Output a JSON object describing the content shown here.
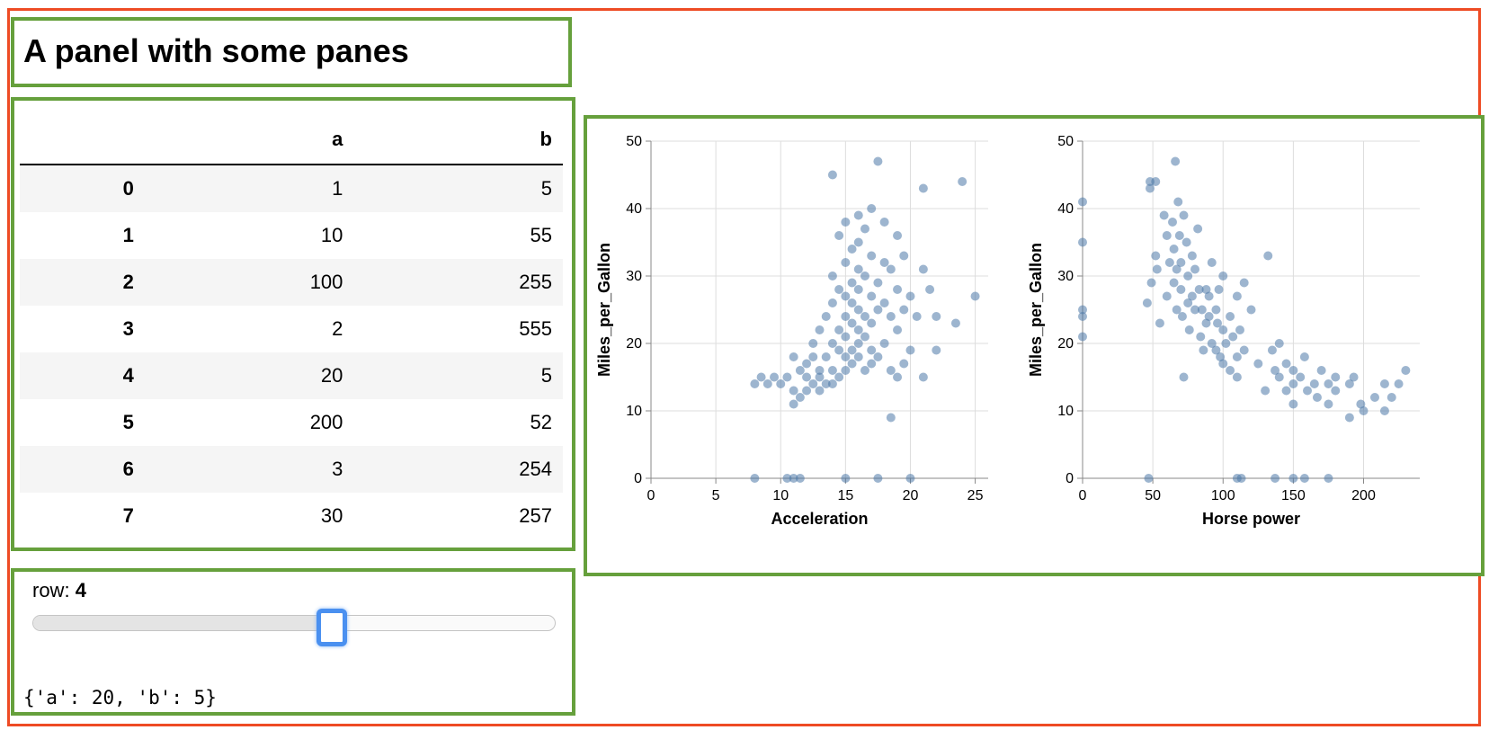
{
  "header": {
    "title": "A panel with some panes"
  },
  "table": {
    "columns": [
      "",
      "a",
      "b"
    ],
    "rows": [
      {
        "index": "0",
        "a": "1",
        "b": "5"
      },
      {
        "index": "1",
        "a": "10",
        "b": "55"
      },
      {
        "index": "2",
        "a": "100",
        "b": "255"
      },
      {
        "index": "3",
        "a": "2",
        "b": "555"
      },
      {
        "index": "4",
        "a": "20",
        "b": "5"
      },
      {
        "index": "5",
        "a": "200",
        "b": "52"
      },
      {
        "index": "6",
        "a": "3",
        "b": "254"
      },
      {
        "index": "7",
        "a": "30",
        "b": "257"
      }
    ]
  },
  "slider": {
    "label": "row:",
    "value": "4",
    "min": 0,
    "max": 7,
    "value_num": 4
  },
  "output": {
    "text": "{'a': 20, 'b': 5}"
  },
  "colors": {
    "outer_border": "#ee4b24",
    "pane_border": "#66a03c",
    "point": "#4c78a8",
    "slider_handle": "#4a90f0"
  },
  "chart_data": [
    {
      "type": "scatter",
      "xlabel": "Acceleration",
      "ylabel": "Miles_per_Gallon",
      "xlim": [
        0,
        26
      ],
      "ylim": [
        0,
        50
      ],
      "xticks": [
        0,
        5,
        10,
        15,
        20,
        25
      ],
      "yticks": [
        0,
        10,
        20,
        30,
        40,
        50
      ],
      "grid": true,
      "point_color": "#4c78a8",
      "points": [
        [
          8.0,
          14
        ],
        [
          8.5,
          15
        ],
        [
          9.0,
          14
        ],
        [
          9.5,
          15
        ],
        [
          10.0,
          14
        ],
        [
          10.5,
          15
        ],
        [
          11.0,
          11
        ],
        [
          11.0,
          13
        ],
        [
          11.0,
          18
        ],
        [
          11.5,
          12
        ],
        [
          11.5,
          16
        ],
        [
          12.0,
          13
        ],
        [
          12.0,
          15
        ],
        [
          12.0,
          17
        ],
        [
          12.5,
          14
        ],
        [
          12.5,
          18
        ],
        [
          12.5,
          20
        ],
        [
          13.0,
          13
        ],
        [
          13.0,
          15
        ],
        [
          13.0,
          16
        ],
        [
          13.0,
          22
        ],
        [
          13.5,
          14
        ],
        [
          13.5,
          18
        ],
        [
          13.5,
          24
        ],
        [
          14.0,
          14
        ],
        [
          14.0,
          16
        ],
        [
          14.0,
          20
        ],
        [
          14.0,
          26
        ],
        [
          14.0,
          30
        ],
        [
          14.0,
          45
        ],
        [
          14.5,
          15
        ],
        [
          14.5,
          19
        ],
        [
          14.5,
          22
        ],
        [
          14.5,
          28
        ],
        [
          14.5,
          36
        ],
        [
          15.0,
          16
        ],
        [
          15.0,
          18
        ],
        [
          15.0,
          21
        ],
        [
          15.0,
          24
        ],
        [
          15.0,
          27
        ],
        [
          15.0,
          32
        ],
        [
          15.0,
          38
        ],
        [
          15.5,
          17
        ],
        [
          15.5,
          19
        ],
        [
          15.5,
          23
        ],
        [
          15.5,
          26
        ],
        [
          15.5,
          29
        ],
        [
          15.5,
          34
        ],
        [
          16.0,
          18
        ],
        [
          16.0,
          20
        ],
        [
          16.0,
          22
        ],
        [
          16.0,
          25
        ],
        [
          16.0,
          28
        ],
        [
          16.0,
          31
        ],
        [
          16.0,
          35
        ],
        [
          16.0,
          39
        ],
        [
          16.5,
          16
        ],
        [
          16.5,
          21
        ],
        [
          16.5,
          24
        ],
        [
          16.5,
          30
        ],
        [
          16.5,
          37
        ],
        [
          17.0,
          17
        ],
        [
          17.0,
          19
        ],
        [
          17.0,
          23
        ],
        [
          17.0,
          27
        ],
        [
          17.0,
          33
        ],
        [
          17.0,
          40
        ],
        [
          17.5,
          18
        ],
        [
          17.5,
          25
        ],
        [
          17.5,
          29
        ],
        [
          17.5,
          47
        ],
        [
          18.0,
          20
        ],
        [
          18.0,
          26
        ],
        [
          18.0,
          32
        ],
        [
          18.0,
          38
        ],
        [
          18.5,
          9
        ],
        [
          18.5,
          16
        ],
        [
          18.5,
          24
        ],
        [
          18.5,
          31
        ],
        [
          19.0,
          15
        ],
        [
          19.0,
          22
        ],
        [
          19.0,
          28
        ],
        [
          19.0,
          36
        ],
        [
          19.5,
          17
        ],
        [
          19.5,
          25
        ],
        [
          19.5,
          33
        ],
        [
          20.0,
          19
        ],
        [
          20.0,
          27
        ],
        [
          20.5,
          24
        ],
        [
          21.0,
          15
        ],
        [
          21.0,
          31
        ],
        [
          21.0,
          43
        ],
        [
          21.5,
          28
        ],
        [
          22.0,
          19
        ],
        [
          22.0,
          24
        ],
        [
          23.5,
          23
        ],
        [
          24.0,
          44
        ],
        [
          25.0,
          27
        ],
        [
          8.0,
          0
        ],
        [
          10.5,
          0
        ],
        [
          11.0,
          0
        ],
        [
          11.5,
          0
        ],
        [
          15.0,
          0
        ],
        [
          17.5,
          0
        ],
        [
          20.0,
          0
        ]
      ]
    },
    {
      "type": "scatter",
      "xlabel": "Horse power",
      "ylabel": "Miles_per_Gallon",
      "xlim": [
        0,
        240
      ],
      "ylim": [
        0,
        50
      ],
      "xticks": [
        0,
        50,
        100,
        150,
        200
      ],
      "yticks": [
        0,
        10,
        20,
        30,
        40,
        50
      ],
      "grid": true,
      "point_color": "#4c78a8",
      "points": [
        [
          0,
          41
        ],
        [
          0,
          35
        ],
        [
          0,
          25
        ],
        [
          0,
          24
        ],
        [
          0,
          21
        ],
        [
          46,
          26
        ],
        [
          48,
          44
        ],
        [
          48,
          43
        ],
        [
          49,
          29
        ],
        [
          52,
          33
        ],
        [
          52,
          44
        ],
        [
          53,
          31
        ],
        [
          55,
          23
        ],
        [
          58,
          39
        ],
        [
          60,
          36
        ],
        [
          60,
          27
        ],
        [
          62,
          32
        ],
        [
          64,
          38
        ],
        [
          65,
          34
        ],
        [
          65,
          29
        ],
        [
          66,
          47
        ],
        [
          67,
          31
        ],
        [
          67,
          25
        ],
        [
          68,
          41
        ],
        [
          69,
          36
        ],
        [
          70,
          32
        ],
        [
          70,
          28
        ],
        [
          71,
          24
        ],
        [
          72,
          39
        ],
        [
          72,
          15
        ],
        [
          74,
          35
        ],
        [
          75,
          30
        ],
        [
          75,
          26
        ],
        [
          76,
          22
        ],
        [
          78,
          33
        ],
        [
          78,
          27
        ],
        [
          80,
          31
        ],
        [
          80,
          25
        ],
        [
          82,
          37
        ],
        [
          83,
          28
        ],
        [
          84,
          21
        ],
        [
          85,
          25
        ],
        [
          86,
          19
        ],
        [
          88,
          28
        ],
        [
          88,
          23
        ],
        [
          90,
          27
        ],
        [
          90,
          24
        ],
        [
          92,
          20
        ],
        [
          92,
          32
        ],
        [
          95,
          25
        ],
        [
          95,
          19
        ],
        [
          96,
          23
        ],
        [
          97,
          28
        ],
        [
          98,
          18
        ],
        [
          100,
          22
        ],
        [
          100,
          17
        ],
        [
          100,
          30
        ],
        [
          102,
          20
        ],
        [
          105,
          24
        ],
        [
          105,
          16
        ],
        [
          107,
          21
        ],
        [
          110,
          18
        ],
        [
          110,
          27
        ],
        [
          110,
          15
        ],
        [
          112,
          22
        ],
        [
          115,
          19
        ],
        [
          115,
          29
        ],
        [
          120,
          25
        ],
        [
          125,
          17
        ],
        [
          130,
          13
        ],
        [
          132,
          33
        ],
        [
          135,
          19
        ],
        [
          137,
          16
        ],
        [
          140,
          15
        ],
        [
          140,
          20
        ],
        [
          145,
          17
        ],
        [
          145,
          13
        ],
        [
          150,
          14
        ],
        [
          150,
          16
        ],
        [
          150,
          11
        ],
        [
          155,
          15
        ],
        [
          158,
          18
        ],
        [
          160,
          13
        ],
        [
          165,
          14
        ],
        [
          167,
          12
        ],
        [
          170,
          16
        ],
        [
          175,
          14
        ],
        [
          175,
          11
        ],
        [
          180,
          15
        ],
        [
          180,
          13
        ],
        [
          190,
          14
        ],
        [
          190,
          9
        ],
        [
          193,
          15
        ],
        [
          198,
          11
        ],
        [
          200,
          10
        ],
        [
          208,
          12
        ],
        [
          215,
          10
        ],
        [
          215,
          14
        ],
        [
          220,
          12
        ],
        [
          225,
          14
        ],
        [
          230,
          16
        ],
        [
          47,
          0
        ],
        [
          110,
          0
        ],
        [
          113,
          0
        ],
        [
          137,
          0
        ],
        [
          150,
          0
        ],
        [
          158,
          0
        ],
        [
          175,
          0
        ]
      ]
    }
  ]
}
